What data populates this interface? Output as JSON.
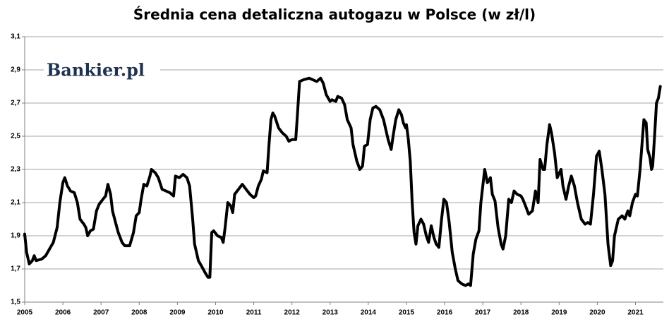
{
  "chart_data": {
    "type": "line",
    "title": "Średnia cena detaliczna autogazu w Polsce (w zł/l)",
    "annotation": "Bankier.pl",
    "xlim": [
      2005,
      2021.73
    ],
    "xticks": [
      2005,
      2006,
      2007,
      2008,
      2009,
      2010,
      2011,
      2012,
      2013,
      2014,
      2015,
      2016,
      2017,
      2018,
      2019,
      2020,
      2021
    ],
    "ylim": [
      1.5,
      3.1
    ],
    "yticks": [
      {
        "value": 1.5,
        "label": "1,5"
      },
      {
        "value": 1.7,
        "label": "1,7"
      },
      {
        "value": 1.9,
        "label": "1,9"
      },
      {
        "value": 2.1,
        "label": "2,1"
      },
      {
        "value": 2.3,
        "label": "2,3"
      },
      {
        "value": 2.5,
        "label": "2,5"
      },
      {
        "value": 2.7,
        "label": "2,7"
      },
      {
        "value": 2.9,
        "label": "2,9"
      },
      {
        "value": 3.1,
        "label": "3,1"
      }
    ],
    "grid": true,
    "x": [
      2005.0,
      2005.05,
      2005.12,
      2005.2,
      2005.25,
      2005.3,
      2005.45,
      2005.55,
      2005.65,
      2005.75,
      2005.85,
      2005.92,
      2006.0,
      2006.05,
      2006.12,
      2006.2,
      2006.3,
      2006.38,
      2006.45,
      2006.55,
      2006.6,
      2006.65,
      2006.72,
      2006.8,
      2006.88,
      2006.95,
      2007.05,
      2007.12,
      2007.18,
      2007.25,
      2007.3,
      2007.38,
      2007.45,
      2007.55,
      2007.62,
      2007.75,
      2007.85,
      2007.92,
      2008.0,
      2008.05,
      2008.12,
      2008.2,
      2008.28,
      2008.32,
      2008.42,
      2008.5,
      2008.6,
      2008.7,
      2008.8,
      2008.9,
      2008.95,
      2009.05,
      2009.15,
      2009.25,
      2009.32,
      2009.4,
      2009.45,
      2009.55,
      2009.65,
      2009.72,
      2009.8,
      2009.85,
      2009.9,
      2009.95,
      2010.05,
      2010.15,
      2010.2,
      2010.25,
      2010.32,
      2010.4,
      2010.45,
      2010.5,
      2010.6,
      2010.7,
      2010.8,
      2010.9,
      2011.0,
      2011.05,
      2011.12,
      2011.2,
      2011.25,
      2011.35,
      2011.4,
      2011.45,
      2011.5,
      2011.55,
      2011.65,
      2011.75,
      2011.85,
      2011.92,
      2012.0,
      2012.1,
      2012.15,
      2012.2,
      2012.3,
      2012.45,
      2012.55,
      2012.65,
      2012.75,
      2012.82,
      2012.9,
      2013.0,
      2013.05,
      2013.15,
      2013.2,
      2013.3,
      2013.38,
      2013.45,
      2013.55,
      2013.6,
      2013.7,
      2013.78,
      2013.85,
      2013.9,
      2013.98,
      2014.05,
      2014.12,
      2014.2,
      2014.3,
      2014.4,
      2014.45,
      2014.52,
      2014.6,
      2014.65,
      2014.72,
      2014.8,
      2014.87,
      2014.92,
      2014.98,
      2015.0,
      2015.05,
      2015.1,
      2015.15,
      2015.2,
      2015.25,
      2015.3,
      2015.38,
      2015.45,
      2015.52,
      2015.58,
      2015.65,
      2015.72,
      2015.78,
      2015.85,
      2015.92,
      2015.98,
      2016.05,
      2016.12,
      2016.2,
      2016.28,
      2016.35,
      2016.45,
      2016.55,
      2016.62,
      2016.68,
      2016.75,
      2016.82,
      2016.9,
      2016.95,
      2017.05,
      2017.12,
      2017.2,
      2017.25,
      2017.32,
      2017.4,
      2017.48,
      2017.53,
      2017.6,
      2017.68,
      2017.75,
      2017.82,
      2017.9,
      2018.0,
      2018.05,
      2018.12,
      2018.2,
      2018.3,
      2018.38,
      2018.45,
      2018.5,
      2018.58,
      2018.62,
      2018.68,
      2018.75,
      2018.8,
      2018.88,
      2018.95,
      2019.05,
      2019.1,
      2019.18,
      2019.25,
      2019.32,
      2019.4,
      2019.48,
      2019.58,
      2019.68,
      2019.75,
      2019.82,
      2019.9,
      2019.98,
      2020.05,
      2020.12,
      2020.2,
      2020.28,
      2020.35,
      2020.4,
      2020.45,
      2020.55,
      2020.65,
      2020.72,
      2020.8,
      2020.85,
      2020.92,
      2021.0,
      2021.05,
      2021.12,
      2021.18,
      2021.22,
      2021.28,
      2021.32,
      2021.38,
      2021.42,
      2021.45,
      2021.5,
      2021.55,
      2021.6,
      2021.65
    ],
    "series": [
      {
        "color": "#000000",
        "values": [
          1.91,
          1.8,
          1.73,
          1.75,
          1.78,
          1.75,
          1.76,
          1.78,
          1.82,
          1.86,
          1.95,
          2.1,
          2.22,
          2.25,
          2.2,
          2.17,
          2.16,
          2.1,
          2.0,
          1.97,
          1.95,
          1.9,
          1.93,
          1.94,
          2.05,
          2.09,
          2.12,
          2.14,
          2.21,
          2.15,
          2.05,
          1.98,
          1.92,
          1.86,
          1.84,
          1.84,
          1.92,
          2.02,
          2.04,
          2.12,
          2.21,
          2.2,
          2.26,
          2.3,
          2.28,
          2.25,
          2.18,
          2.17,
          2.16,
          2.14,
          2.26,
          2.25,
          2.27,
          2.25,
          2.2,
          2.0,
          1.85,
          1.75,
          1.71,
          1.68,
          1.65,
          1.65,
          1.92,
          1.93,
          1.9,
          1.89,
          1.86,
          1.95,
          2.1,
          2.08,
          2.04,
          2.15,
          2.18,
          2.21,
          2.18,
          2.15,
          2.13,
          2.14,
          2.2,
          2.24,
          2.29,
          2.28,
          2.45,
          2.6,
          2.64,
          2.62,
          2.55,
          2.52,
          2.5,
          2.47,
          2.48,
          2.48,
          2.65,
          2.83,
          2.84,
          2.85,
          2.84,
          2.83,
          2.85,
          2.82,
          2.75,
          2.71,
          2.72,
          2.71,
          2.74,
          2.73,
          2.69,
          2.6,
          2.55,
          2.45,
          2.35,
          2.3,
          2.32,
          2.44,
          2.45,
          2.6,
          2.67,
          2.68,
          2.66,
          2.6,
          2.55,
          2.48,
          2.42,
          2.5,
          2.6,
          2.66,
          2.63,
          2.58,
          2.55,
          2.57,
          2.48,
          2.35,
          2.1,
          1.92,
          1.85,
          1.96,
          2.0,
          1.97,
          1.9,
          1.86,
          1.96,
          1.89,
          1.85,
          1.83,
          2.0,
          2.12,
          2.1,
          1.98,
          1.8,
          1.7,
          1.63,
          1.61,
          1.6,
          1.61,
          1.6,
          1.79,
          1.88,
          1.93,
          2.1,
          2.3,
          2.22,
          2.25,
          2.15,
          2.11,
          1.95,
          1.85,
          1.82,
          1.9,
          2.12,
          2.1,
          2.17,
          2.15,
          2.14,
          2.12,
          2.08,
          2.03,
          2.05,
          2.17,
          2.1,
          2.36,
          2.3,
          2.3,
          2.45,
          2.57,
          2.52,
          2.4,
          2.25,
          2.3,
          2.2,
          2.12,
          2.2,
          2.26,
          2.2,
          2.1,
          2.0,
          1.97,
          1.98,
          1.97,
          2.15,
          2.38,
          2.41,
          2.3,
          2.15,
          1.85,
          1.72,
          1.75,
          1.9,
          2.0,
          2.02,
          2.0,
          2.05,
          2.02,
          2.1,
          2.15,
          2.14,
          2.3,
          2.48,
          2.6,
          2.58,
          2.42,
          2.37,
          2.3,
          2.32,
          2.5,
          2.7,
          2.73,
          2.8
        ]
      }
    ]
  }
}
